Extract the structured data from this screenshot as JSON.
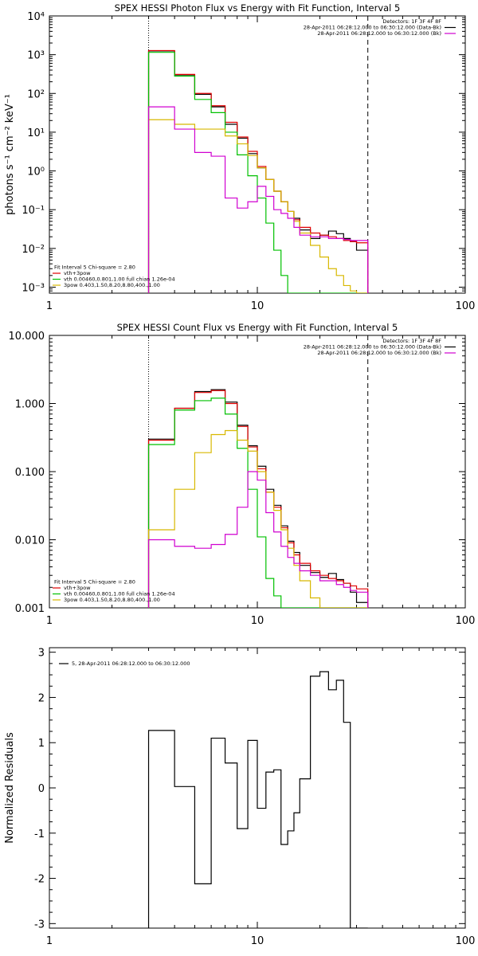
{
  "chart_data": [
    {
      "type": "line",
      "title": "SPEX HESSI Photon Flux vs Energy with Fit Function, Interval 5",
      "xlabel": "",
      "ylabel": "photons s⁻¹ cm⁻² keV⁻¹",
      "x_scale": "log",
      "y_scale": "log",
      "xlim": [
        1,
        100
      ],
      "ylim": [
        0.0007,
        10000
      ],
      "x_ticks": [
        {
          "v": 1,
          "label": "1"
        },
        {
          "v": 10,
          "label": "10"
        },
        {
          "v": 100,
          "label": "100"
        }
      ],
      "y_ticks": [
        {
          "v": 0.001,
          "label": "10⁻³"
        },
        {
          "v": 0.01,
          "label": "10⁻²"
        },
        {
          "v": 0.1,
          "label": "10⁻¹"
        },
        {
          "v": 1,
          "label": "10⁰"
        },
        {
          "v": 10,
          "label": "10¹"
        },
        {
          "v": 100,
          "label": "10²"
        },
        {
          "v": 1000,
          "label": "10³"
        },
        {
          "v": 10000,
          "label": "10⁴"
        }
      ],
      "vlines": [
        {
          "x": 3.0,
          "style": "dotted"
        },
        {
          "x": 34.0,
          "style": "dashed"
        }
      ],
      "legend_topright": [
        {
          "text": "Detectors: 1F 3F 4F 8F",
          "color": ""
        },
        {
          "text": "28-Apr-2011 06:28:12.000 to 06:30:12.000 (Data-Bk)",
          "color": "#000000"
        },
        {
          "text": "28-Apr-2011 06:28:12.000 to 06:30:12.000 (Bk)",
          "color": "#d000d0"
        }
      ],
      "legend_bottomleft": [
        {
          "text": "Fit Interval 5   Chi-square = 2.80",
          "color": ""
        },
        {
          "text": "vth+3pow",
          "color": "#e00000"
        },
        {
          "text": "vth 0.00460,0.801,1.00  full chian 1.26e-04",
          "color": "#00c000"
        },
        {
          "text": "3pow 0.403,1.50,8.20,8.80,400.,1.00",
          "color": "#d8b800"
        }
      ],
      "bin_edges": [
        3.0,
        4.0,
        5.0,
        6.0,
        7.0,
        8.0,
        9.0,
        10.0,
        11.0,
        12.0,
        13.0,
        14.0,
        15.0,
        16.0,
        18.0,
        20.0,
        22.0,
        24.0,
        26.0,
        28.0,
        30.0,
        34.0
      ],
      "series": [
        {
          "name": "",
          "color": "#000000",
          "values": [
            1250,
            300,
            95,
            45,
            16,
            7,
            2.8,
            1.2,
            0.6,
            0.3,
            0.16,
            0.09,
            0.06,
            0.03,
            0.018,
            0.022,
            0.028,
            0.024,
            0.018,
            0.015,
            0.009
          ]
        },
        {
          "name": "vth+3pow",
          "color": "#e00000",
          "values": [
            1280,
            310,
            100,
            48,
            18,
            7.5,
            3.2,
            1.3,
            0.6,
            0.3,
            0.16,
            0.09,
            0.055,
            0.035,
            0.025,
            0.022,
            0.02,
            0.018,
            0.016,
            0.015,
            0.014
          ]
        },
        {
          "name": "vth",
          "color": "#00c000",
          "values": [
            1150,
            280,
            70,
            32,
            10,
            2.6,
            0.75,
            0.2,
            0.045,
            0.009,
            0.002,
            0.0007,
            0.0007,
            0.0007,
            0.0007,
            0.0007,
            0.0007,
            0.0007,
            0.0007,
            0.0007,
            0.0007
          ]
        },
        {
          "name": "3pow",
          "color": "#d8b800",
          "values": [
            21,
            16,
            12,
            12,
            8,
            5,
            2.5,
            1.2,
            0.6,
            0.3,
            0.16,
            0.09,
            0.05,
            0.025,
            0.012,
            0.006,
            0.003,
            0.002,
            0.0011,
            0.0008,
            0.0007
          ]
        },
        {
          "name": "",
          "color": "#d000d0",
          "values": [
            45,
            12,
            3.0,
            2.4,
            0.2,
            0.11,
            0.16,
            0.4,
            0.22,
            0.1,
            0.08,
            0.06,
            0.035,
            0.022,
            0.02,
            0.02,
            0.018,
            0.018,
            0.017,
            0.016,
            0.016
          ]
        }
      ]
    },
    {
      "type": "line",
      "title": "SPEX HESSI Count Flux vs Energy with Fit Function, Interval 5",
      "xlabel": "",
      "ylabel": "",
      "x_scale": "log",
      "y_scale": "log",
      "xlim": [
        1,
        100
      ],
      "ylim": [
        0.001,
        10
      ],
      "x_ticks": [
        {
          "v": 1,
          "label": "1"
        },
        {
          "v": 10,
          "label": "10"
        },
        {
          "v": 100,
          "label": "100"
        }
      ],
      "y_ticks": [
        {
          "v": 0.001,
          "label": "0.001"
        },
        {
          "v": 0.01,
          "label": "0.010"
        },
        {
          "v": 0.1,
          "label": "0.100"
        },
        {
          "v": 1,
          "label": "1.000"
        },
        {
          "v": 10,
          "label": "10.000"
        }
      ],
      "vlines": [
        {
          "x": 3.0,
          "style": "dotted"
        },
        {
          "x": 34.0,
          "style": "dashed"
        }
      ],
      "legend_topright": [
        {
          "text": "Detectors: 1F 3F 4F 8F",
          "color": ""
        },
        {
          "text": "28-Apr-2011 06:28:12.000 to 06:30:12.000 (Data-Bk)",
          "color": "#000000"
        },
        {
          "text": "28-Apr-2011 06:28:12.000 to 06:30:12.000 (Bk)",
          "color": "#d000d0"
        }
      ],
      "legend_bottomleft": [
        {
          "text": "Fit Interval 5   Chi-square = 2.80",
          "color": ""
        },
        {
          "text": "vth+3pow",
          "color": "#e00000"
        },
        {
          "text": "vth 0.00460,0.801,1.00  full chian 1.26e-04",
          "color": "#00c000"
        },
        {
          "text": "3pow 0.403,1.50,8.20,8.80,400.,1.00",
          "color": "#d8b800"
        }
      ],
      "bin_edges": [
        3.0,
        4.0,
        5.0,
        6.0,
        7.0,
        8.0,
        9.0,
        10.0,
        11.0,
        12.0,
        13.0,
        14.0,
        15.0,
        16.0,
        18.0,
        20.0,
        22.0,
        24.0,
        26.0,
        28.0,
        30.0,
        34.0
      ],
      "series": [
        {
          "name": "",
          "color": "#000000",
          "values": [
            0.3,
            0.85,
            1.5,
            1.6,
            1.05,
            0.48,
            0.24,
            0.12,
            0.055,
            0.032,
            0.016,
            0.0095,
            0.0065,
            0.0042,
            0.0033,
            0.0028,
            0.0032,
            0.0026,
            0.0023,
            0.0017,
            0.0012
          ]
        },
        {
          "name": "vth+3pow",
          "color": "#e00000",
          "values": [
            0.29,
            0.85,
            1.45,
            1.55,
            1.0,
            0.46,
            0.23,
            0.11,
            0.05,
            0.03,
            0.015,
            0.009,
            0.006,
            0.0045,
            0.0035,
            0.003,
            0.0027,
            0.0025,
            0.0023,
            0.0021,
            0.0019
          ]
        },
        {
          "name": "vth",
          "color": "#00c000",
          "values": [
            0.25,
            0.8,
            1.1,
            1.2,
            0.7,
            0.22,
            0.055,
            0.011,
            0.0027,
            0.0015,
            0.001,
            0.001,
            0.001,
            0.001,
            0.001,
            0.001,
            0.001,
            0.001,
            0.001,
            0.001,
            0.001
          ]
        },
        {
          "name": "3pow",
          "color": "#d8b800",
          "values": [
            0.014,
            0.055,
            0.19,
            0.35,
            0.4,
            0.29,
            0.2,
            0.1,
            0.05,
            0.027,
            0.014,
            0.0075,
            0.0042,
            0.0025,
            0.0014,
            0.001,
            0.001,
            0.001,
            0.001,
            0.001,
            0.001
          ]
        },
        {
          "name": "",
          "color": "#d000d0",
          "values": [
            0.01,
            0.008,
            0.0075,
            0.0085,
            0.012,
            0.03,
            0.1,
            0.075,
            0.025,
            0.013,
            0.008,
            0.0055,
            0.0045,
            0.0035,
            0.003,
            0.0025,
            0.0025,
            0.0022,
            0.002,
            0.0018,
            0.0017
          ]
        }
      ]
    },
    {
      "type": "line",
      "title": "",
      "xlabel": "",
      "ylabel": "Normalized Residuals",
      "x_scale": "log",
      "y_scale": "linear",
      "xlim": [
        1,
        100
      ],
      "ylim": [
        -3.1,
        3.1
      ],
      "x_ticks": [
        {
          "v": 1,
          "label": "1"
        },
        {
          "v": 10,
          "label": "10"
        },
        {
          "v": 100,
          "label": "100"
        }
      ],
      "y_ticks": [
        {
          "v": -3,
          "label": "-3"
        },
        {
          "v": -2,
          "label": "-2"
        },
        {
          "v": -1,
          "label": "-1"
        },
        {
          "v": 0,
          "label": "0"
        },
        {
          "v": 1,
          "label": "1"
        },
        {
          "v": 2,
          "label": "2"
        },
        {
          "v": 3,
          "label": "3"
        }
      ],
      "vlines": [],
      "legend_topright": [],
      "legend_topleft": [
        {
          "text": "5, 28-Apr-2011 06:28:12.000 to 06:30:12.000",
          "color": "#000000"
        }
      ],
      "legend_bottomleft": [],
      "bin_edges": [
        3.0,
        4.0,
        5.0,
        6.0,
        7.0,
        8.0,
        9.0,
        10.0,
        11.0,
        12.0,
        13.0,
        14.0,
        15.0,
        16.0,
        18.0,
        20.0,
        22.0,
        24.0,
        26.0,
        28.0,
        30.0,
        34.0
      ],
      "series": [
        {
          "name": "",
          "color": "#000000",
          "values": [
            1.27,
            0.03,
            -2.12,
            1.1,
            0.55,
            -0.9,
            1.05,
            -0.45,
            0.35,
            0.4,
            -1.25,
            -0.95,
            -0.55,
            0.2,
            2.47,
            2.57,
            2.17,
            2.38,
            1.45,
            -3.1,
            -3.1
          ]
        }
      ]
    }
  ]
}
